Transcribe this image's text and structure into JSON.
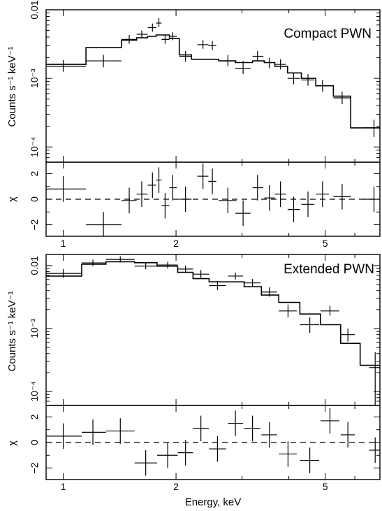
{
  "chart_data": [
    {
      "type": "scatter",
      "title": "Compact PWN",
      "xlabel": "",
      "x_scale": "log",
      "xlim": [
        0.9,
        7.0
      ],
      "x_ticks": [
        {
          "value": 1,
          "label": "1"
        },
        {
          "value": 2,
          "label": "2"
        },
        {
          "value": 5,
          "label": "5"
        }
      ],
      "spectrum": {
        "ylabel": "Counts s⁻¹ keV⁻¹",
        "y_scale": "log",
        "ylim": [
          6e-05,
          0.01
        ],
        "y_ticks": [
          {
            "value": 0.01,
            "label": "0.01"
          },
          {
            "value": 0.001,
            "label": "10⁻³"
          },
          {
            "value": 0.0001,
            "label": "10⁻⁴"
          }
        ],
        "points": [
          {
            "x": 1.0,
            "xlo": 0.9,
            "xhi": 1.15,
            "y": 0.0015,
            "ylo": 0.00125,
            "yhi": 0.00185
          },
          {
            "x": 1.28,
            "xlo": 1.15,
            "xhi": 1.43,
            "y": 0.0018,
            "ylo": 0.00145,
            "yhi": 0.0022
          },
          {
            "x": 1.5,
            "xlo": 1.43,
            "xhi": 1.57,
            "y": 0.0037,
            "ylo": 0.0032,
            "yhi": 0.0043
          },
          {
            "x": 1.62,
            "xlo": 1.57,
            "xhi": 1.68,
            "y": 0.0044,
            "ylo": 0.0039,
            "yhi": 0.005
          },
          {
            "x": 1.73,
            "xlo": 1.68,
            "xhi": 1.77,
            "y": 0.0055,
            "ylo": 0.0048,
            "yhi": 0.0063
          },
          {
            "x": 1.8,
            "xlo": 1.77,
            "xhi": 1.83,
            "y": 0.0064,
            "ylo": 0.0056,
            "yhi": 0.0076
          },
          {
            "x": 1.87,
            "xlo": 1.83,
            "xhi": 1.92,
            "y": 0.0037,
            "ylo": 0.0032,
            "yhi": 0.0043
          },
          {
            "x": 1.96,
            "xlo": 1.92,
            "xhi": 2.01,
            "y": 0.0041,
            "ylo": 0.0036,
            "yhi": 0.0047
          },
          {
            "x": 2.12,
            "xlo": 2.04,
            "xhi": 2.2,
            "y": 0.0021,
            "ylo": 0.00175,
            "yhi": 0.0025
          },
          {
            "x": 2.36,
            "xlo": 2.28,
            "xhi": 2.44,
            "y": 0.0031,
            "ylo": 0.0027,
            "yhi": 0.0036
          },
          {
            "x": 2.5,
            "xlo": 2.44,
            "xhi": 2.56,
            "y": 0.003,
            "ylo": 0.0026,
            "yhi": 0.0035
          },
          {
            "x": 2.75,
            "xlo": 2.6,
            "xhi": 2.9,
            "y": 0.0018,
            "ylo": 0.0015,
            "yhi": 0.0022
          },
          {
            "x": 3.02,
            "xlo": 2.88,
            "xhi": 3.16,
            "y": 0.0014,
            "ylo": 0.00115,
            "yhi": 0.0018
          },
          {
            "x": 3.3,
            "xlo": 3.2,
            "xhi": 3.42,
            "y": 0.0021,
            "ylo": 0.0018,
            "yhi": 0.0025
          },
          {
            "x": 3.55,
            "xlo": 3.44,
            "xhi": 3.67,
            "y": 0.0017,
            "ylo": 0.0014,
            "yhi": 0.002
          },
          {
            "x": 3.8,
            "xlo": 3.67,
            "xhi": 3.93,
            "y": 0.0016,
            "ylo": 0.00135,
            "yhi": 0.0019
          },
          {
            "x": 4.12,
            "xlo": 3.97,
            "xhi": 4.28,
            "y": 0.001,
            "ylo": 0.00082,
            "yhi": 0.0012
          },
          {
            "x": 4.5,
            "xlo": 4.32,
            "xhi": 4.68,
            "y": 0.00095,
            "ylo": 0.00078,
            "yhi": 0.00115
          },
          {
            "x": 4.92,
            "xlo": 4.72,
            "xhi": 5.12,
            "y": 0.00078,
            "ylo": 0.00064,
            "yhi": 0.00095
          },
          {
            "x": 5.55,
            "xlo": 5.26,
            "xhi": 5.85,
            "y": 0.00052,
            "ylo": 0.00042,
            "yhi": 0.00064
          },
          {
            "x": 6.75,
            "xlo": 6.3,
            "xhi": 7.0,
            "y": 0.00019,
            "ylo": 0.00014,
            "yhi": 0.00025
          }
        ],
        "model_steps": [
          {
            "x0": 0.9,
            "x1": 1.15,
            "y": 0.0016
          },
          {
            "x0": 1.15,
            "x1": 1.43,
            "y": 0.0028
          },
          {
            "x0": 1.43,
            "x1": 1.57,
            "y": 0.0036
          },
          {
            "x0": 1.57,
            "x1": 1.68,
            "y": 0.0039
          },
          {
            "x0": 1.68,
            "x1": 1.77,
            "y": 0.0041
          },
          {
            "x0": 1.77,
            "x1": 1.92,
            "y": 0.0043
          },
          {
            "x0": 1.92,
            "x1": 2.04,
            "y": 0.0038
          },
          {
            "x0": 2.04,
            "x1": 2.2,
            "y": 0.0022
          },
          {
            "x0": 2.2,
            "x1": 2.44,
            "y": 0.0019
          },
          {
            "x0": 2.44,
            "x1": 2.6,
            "y": 0.0019
          },
          {
            "x0": 2.6,
            "x1": 2.88,
            "y": 0.0018
          },
          {
            "x0": 2.88,
            "x1": 3.2,
            "y": 0.0017
          },
          {
            "x0": 3.2,
            "x1": 3.44,
            "y": 0.0018
          },
          {
            "x0": 3.44,
            "x1": 3.67,
            "y": 0.0017
          },
          {
            "x0": 3.67,
            "x1": 3.97,
            "y": 0.0015
          },
          {
            "x0": 3.97,
            "x1": 4.32,
            "y": 0.0012
          },
          {
            "x0": 4.32,
            "x1": 4.72,
            "y": 0.001
          },
          {
            "x0": 4.72,
            "x1": 5.26,
            "y": 0.00078
          },
          {
            "x0": 5.26,
            "x1": 5.85,
            "y": 0.00055
          },
          {
            "x0": 5.85,
            "x1": 7.0,
            "y": 0.00019
          }
        ]
      },
      "residuals": {
        "ylabel": "χ",
        "ylim": [
          -2.9,
          2.9
        ],
        "y_ticks": [
          {
            "value": 2,
            "label": "2"
          },
          {
            "value": 0,
            "label": "0"
          },
          {
            "value": -2,
            "label": "−2"
          }
        ],
        "points": [
          {
            "x": 1.0,
            "xlo": 0.9,
            "xhi": 1.15,
            "y": 0.8,
            "ylo": -0.2,
            "yhi": 1.8
          },
          {
            "x": 1.28,
            "xlo": 1.15,
            "xhi": 1.43,
            "y": -2.0,
            "ylo": -3.0,
            "yhi": -1.0
          },
          {
            "x": 1.5,
            "xlo": 1.43,
            "xhi": 1.57,
            "y": -0.1,
            "ylo": -1.1,
            "yhi": 0.9
          },
          {
            "x": 1.62,
            "xlo": 1.57,
            "xhi": 1.68,
            "y": 0.4,
            "ylo": -0.6,
            "yhi": 1.4
          },
          {
            "x": 1.73,
            "xlo": 1.68,
            "xhi": 1.77,
            "y": 1.1,
            "ylo": 0.1,
            "yhi": 2.1
          },
          {
            "x": 1.8,
            "xlo": 1.77,
            "xhi": 1.83,
            "y": 1.5,
            "ylo": 0.5,
            "yhi": 2.5
          },
          {
            "x": 1.87,
            "xlo": 1.83,
            "xhi": 1.92,
            "y": -0.5,
            "ylo": -1.5,
            "yhi": 0.5
          },
          {
            "x": 1.96,
            "xlo": 1.92,
            "xhi": 2.01,
            "y": 0.9,
            "ylo": -0.1,
            "yhi": 1.9
          },
          {
            "x": 2.12,
            "xlo": 2.04,
            "xhi": 2.2,
            "y": 0.0,
            "ylo": -1.0,
            "yhi": 1.0
          },
          {
            "x": 2.36,
            "xlo": 2.28,
            "xhi": 2.44,
            "y": 1.8,
            "ylo": 0.8,
            "yhi": 2.8
          },
          {
            "x": 2.5,
            "xlo": 2.44,
            "xhi": 2.56,
            "y": 1.4,
            "ylo": 0.4,
            "yhi": 2.4
          },
          {
            "x": 2.75,
            "xlo": 2.6,
            "xhi": 2.9,
            "y": -0.1,
            "ylo": -1.1,
            "yhi": 0.9
          },
          {
            "x": 3.02,
            "xlo": 2.88,
            "xhi": 3.16,
            "y": -1.1,
            "ylo": -2.1,
            "yhi": -0.1
          },
          {
            "x": 3.3,
            "xlo": 3.2,
            "xhi": 3.42,
            "y": 0.9,
            "ylo": -0.1,
            "yhi": 1.9
          },
          {
            "x": 3.55,
            "xlo": 3.44,
            "xhi": 3.67,
            "y": 0.1,
            "ylo": -0.9,
            "yhi": 1.1
          },
          {
            "x": 3.8,
            "xlo": 3.67,
            "xhi": 3.93,
            "y": 0.4,
            "ylo": -0.6,
            "yhi": 1.4
          },
          {
            "x": 4.12,
            "xlo": 3.97,
            "xhi": 4.28,
            "y": -0.8,
            "ylo": -1.8,
            "yhi": 0.2
          },
          {
            "x": 4.5,
            "xlo": 4.32,
            "xhi": 4.68,
            "y": -0.4,
            "ylo": -1.4,
            "yhi": 0.6
          },
          {
            "x": 4.92,
            "xlo": 4.72,
            "xhi": 5.12,
            "y": 0.4,
            "ylo": -0.6,
            "yhi": 1.4
          },
          {
            "x": 5.55,
            "xlo": 5.26,
            "xhi": 5.85,
            "y": 0.2,
            "ylo": -0.8,
            "yhi": 1.2
          },
          {
            "x": 6.75,
            "xlo": 6.3,
            "xhi": 7.0,
            "y": 0.0,
            "ylo": -1.0,
            "yhi": 1.0
          }
        ]
      }
    },
    {
      "type": "scatter",
      "title": "Extended PWN",
      "xlabel": "Energy, keV",
      "x_scale": "log",
      "xlim": [
        0.9,
        7.0
      ],
      "x_ticks": [
        {
          "value": 1,
          "label": "1"
        },
        {
          "value": 2,
          "label": "2"
        },
        {
          "value": 5,
          "label": "5"
        }
      ],
      "spectrum": {
        "ylabel": "Counts s⁻¹ keV⁻¹",
        "y_scale": "log",
        "ylim": [
          6e-05,
          0.015
        ],
        "y_ticks": [
          {
            "value": 0.01,
            "label": "0.01"
          },
          {
            "value": 0.001,
            "label": "10⁻³"
          },
          {
            "value": 0.0001,
            "label": "10⁻⁴"
          }
        ],
        "points": [
          {
            "x": 1.0,
            "xlo": 0.9,
            "xhi": 1.12,
            "y": 0.0075,
            "ylo": 0.0064,
            "yhi": 0.0088
          },
          {
            "x": 1.2,
            "xlo": 1.12,
            "xhi": 1.3,
            "y": 0.011,
            "ylo": 0.0098,
            "yhi": 0.0124
          },
          {
            "x": 1.42,
            "xlo": 1.3,
            "xhi": 1.55,
            "y": 0.0125,
            "ylo": 0.0112,
            "yhi": 0.014
          },
          {
            "x": 1.66,
            "xlo": 1.55,
            "xhi": 1.78,
            "y": 0.0098,
            "ylo": 0.0087,
            "yhi": 0.011
          },
          {
            "x": 1.9,
            "xlo": 1.78,
            "xhi": 2.02,
            "y": 0.0102,
            "ylo": 0.009,
            "yhi": 0.0115
          },
          {
            "x": 2.12,
            "xlo": 2.02,
            "xhi": 2.22,
            "y": 0.0088,
            "ylo": 0.0077,
            "yhi": 0.01
          },
          {
            "x": 2.33,
            "xlo": 2.22,
            "xhi": 2.45,
            "y": 0.0073,
            "ylo": 0.0063,
            "yhi": 0.0085
          },
          {
            "x": 2.58,
            "xlo": 2.45,
            "xhi": 2.72,
            "y": 0.0048,
            "ylo": 0.0041,
            "yhi": 0.0057
          },
          {
            "x": 2.88,
            "xlo": 2.75,
            "xhi": 3.02,
            "y": 0.0068,
            "ylo": 0.006,
            "yhi": 0.0077
          },
          {
            "x": 3.2,
            "xlo": 3.04,
            "xhi": 3.36,
            "y": 0.0053,
            "ylo": 0.0046,
            "yhi": 0.0061
          },
          {
            "x": 3.55,
            "xlo": 3.38,
            "xhi": 3.72,
            "y": 0.0038,
            "ylo": 0.0032,
            "yhi": 0.0045
          },
          {
            "x": 3.98,
            "xlo": 3.76,
            "xhi": 4.2,
            "y": 0.0019,
            "ylo": 0.0015,
            "yhi": 0.0024
          },
          {
            "x": 4.55,
            "xlo": 4.28,
            "xhi": 4.82,
            "y": 0.00115,
            "ylo": 0.00085,
            "yhi": 0.0015
          },
          {
            "x": 5.15,
            "xlo": 4.86,
            "xhi": 5.45,
            "y": 0.0019,
            "ylo": 0.0016,
            "yhi": 0.0023
          },
          {
            "x": 5.75,
            "xlo": 5.5,
            "xhi": 6.0,
            "y": 0.0008,
            "ylo": 0.00062,
            "yhi": 0.001
          },
          {
            "x": 6.8,
            "xlo": 6.55,
            "xhi": 7.0,
            "y": 0.00024,
            "ylo": 6e-05,
            "yhi": 0.00042
          }
        ],
        "model_steps": [
          {
            "x0": 0.9,
            "x1": 1.12,
            "y": 0.0068
          },
          {
            "x0": 1.12,
            "x1": 1.3,
            "y": 0.0105
          },
          {
            "x0": 1.3,
            "x1": 1.55,
            "y": 0.0115
          },
          {
            "x0": 1.55,
            "x1": 1.78,
            "y": 0.0111
          },
          {
            "x0": 1.78,
            "x1": 2.02,
            "y": 0.0098
          },
          {
            "x0": 2.02,
            "x1": 2.22,
            "y": 0.0078
          },
          {
            "x0": 2.22,
            "x1": 2.45,
            "y": 0.0062
          },
          {
            "x0": 2.45,
            "x1": 2.75,
            "y": 0.0055
          },
          {
            "x0": 2.75,
            "x1": 3.04,
            "y": 0.0055
          },
          {
            "x0": 3.04,
            "x1": 3.38,
            "y": 0.0046
          },
          {
            "x0": 3.38,
            "x1": 3.76,
            "y": 0.0034
          },
          {
            "x0": 3.76,
            "x1": 4.28,
            "y": 0.0026
          },
          {
            "x0": 4.28,
            "x1": 4.86,
            "y": 0.0017
          },
          {
            "x0": 4.86,
            "x1": 5.5,
            "y": 0.00115
          },
          {
            "x0": 5.5,
            "x1": 6.2,
            "y": 0.00058
          },
          {
            "x0": 6.2,
            "x1": 7.0,
            "y": 0.00026
          }
        ]
      },
      "residuals": {
        "ylabel": "χ",
        "ylim": [
          -2.9,
          2.9
        ],
        "y_ticks": [
          {
            "value": 2,
            "label": "2"
          },
          {
            "value": 0,
            "label": "0"
          },
          {
            "value": -2,
            "label": "−2"
          }
        ],
        "points": [
          {
            "x": 1.0,
            "xlo": 0.9,
            "xhi": 1.12,
            "y": 0.5,
            "ylo": -0.5,
            "yhi": 1.5
          },
          {
            "x": 1.2,
            "xlo": 1.12,
            "xhi": 1.3,
            "y": 0.8,
            "ylo": -0.2,
            "yhi": 1.8
          },
          {
            "x": 1.42,
            "xlo": 1.3,
            "xhi": 1.55,
            "y": 0.9,
            "ylo": -0.1,
            "yhi": 1.9
          },
          {
            "x": 1.66,
            "xlo": 1.55,
            "xhi": 1.78,
            "y": -1.6,
            "ylo": -2.6,
            "yhi": -0.6
          },
          {
            "x": 1.9,
            "xlo": 1.78,
            "xhi": 2.02,
            "y": -1.0,
            "ylo": -2.0,
            "yhi": 0.0
          },
          {
            "x": 2.12,
            "xlo": 2.02,
            "xhi": 2.22,
            "y": -0.8,
            "ylo": -1.8,
            "yhi": 0.2
          },
          {
            "x": 2.33,
            "xlo": 2.22,
            "xhi": 2.45,
            "y": 1.1,
            "ylo": 0.1,
            "yhi": 2.1
          },
          {
            "x": 2.58,
            "xlo": 2.45,
            "xhi": 2.72,
            "y": -0.5,
            "ylo": -1.5,
            "yhi": 0.5
          },
          {
            "x": 2.88,
            "xlo": 2.75,
            "xhi": 3.02,
            "y": 1.5,
            "ylo": 0.5,
            "yhi": 2.5
          },
          {
            "x": 3.2,
            "xlo": 3.04,
            "xhi": 3.36,
            "y": 1.1,
            "ylo": 0.1,
            "yhi": 2.1
          },
          {
            "x": 3.55,
            "xlo": 3.38,
            "xhi": 3.72,
            "y": 0.6,
            "ylo": -0.4,
            "yhi": 1.6
          },
          {
            "x": 3.98,
            "xlo": 3.76,
            "xhi": 4.2,
            "y": -0.9,
            "ylo": -1.9,
            "yhi": 0.1
          },
          {
            "x": 4.55,
            "xlo": 4.28,
            "xhi": 4.82,
            "y": -1.4,
            "ylo": -2.4,
            "yhi": -0.4
          },
          {
            "x": 5.15,
            "xlo": 4.86,
            "xhi": 5.45,
            "y": 1.7,
            "ylo": 0.7,
            "yhi": 2.7
          },
          {
            "x": 5.75,
            "xlo": 5.5,
            "xhi": 6.0,
            "y": 0.6,
            "ylo": -0.4,
            "yhi": 1.6
          },
          {
            "x": 6.8,
            "xlo": 6.55,
            "xhi": 7.0,
            "y": -0.6,
            "ylo": -1.6,
            "yhi": 0.4
          }
        ]
      }
    }
  ]
}
